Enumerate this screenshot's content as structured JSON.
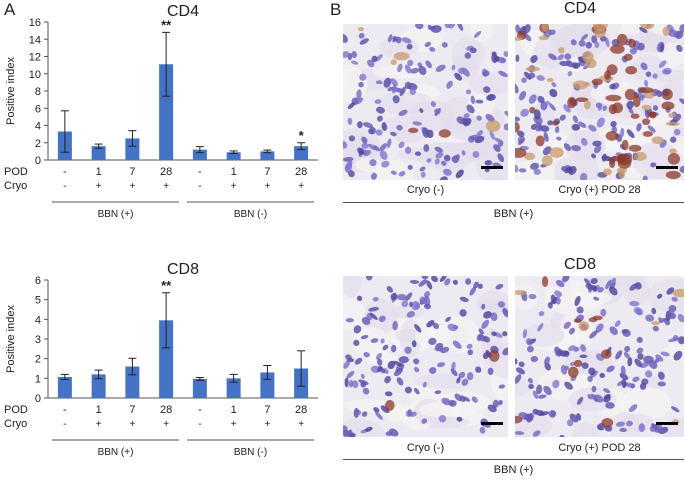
{
  "panel_a_label": "A",
  "panel_b_label": "B",
  "chart_data": [
    {
      "type": "bar",
      "title": "CD4",
      "ylabel": "Positive index",
      "ylim": [
        0,
        16
      ],
      "yticks": [
        0,
        2,
        4,
        6,
        8,
        10,
        12,
        14,
        16
      ],
      "bar_color": "#4472C4",
      "rows": [
        {
          "label": "POD",
          "values": [
            "-",
            "1",
            "7",
            "28",
            "-",
            "1",
            "7",
            "28"
          ]
        },
        {
          "label": "Cryo",
          "values": [
            "-",
            "+",
            "+",
            "+",
            "-",
            "+",
            "+",
            "+"
          ]
        }
      ],
      "groups": [
        {
          "label": "BBN (+)",
          "bars": [
            0,
            1,
            2,
            3
          ]
        },
        {
          "label": "BBN (-)",
          "bars": [
            4,
            5,
            6,
            7
          ]
        }
      ],
      "values": [
        3.3,
        1.6,
        2.5,
        11.1,
        1.2,
        0.9,
        1.0,
        1.6
      ],
      "errors": [
        2.4,
        0.25,
        0.9,
        3.7,
        0.35,
        0.15,
        0.15,
        0.4
      ],
      "annotations": [
        {
          "bar": 3,
          "text": "**"
        },
        {
          "bar": 7,
          "text": "*"
        }
      ]
    },
    {
      "type": "bar",
      "title": "CD8",
      "ylabel": "Positive index",
      "ylim": [
        0,
        6
      ],
      "yticks": [
        0,
        1,
        2,
        3,
        4,
        5,
        6
      ],
      "bar_color": "#4472C4",
      "rows": [
        {
          "label": "POD",
          "values": [
            "-",
            "1",
            "7",
            "28",
            "-",
            "1",
            "7",
            "28"
          ]
        },
        {
          "label": "Cryo",
          "values": [
            "-",
            "+",
            "+",
            "+",
            "-",
            "+",
            "+",
            "+"
          ]
        }
      ],
      "groups": [
        {
          "label": "BBN (+)",
          "bars": [
            0,
            1,
            2,
            3
          ]
        },
        {
          "label": "BBN (-)",
          "bars": [
            4,
            5,
            6,
            7
          ]
        }
      ],
      "values": [
        1.07,
        1.2,
        1.6,
        3.95,
        0.97,
        1.0,
        1.3,
        1.5
      ],
      "errors": [
        0.13,
        0.22,
        0.42,
        1.4,
        0.07,
        0.2,
        0.35,
        0.9
      ],
      "annotations": [
        {
          "bar": 3,
          "text": "**"
        }
      ]
    }
  ],
  "images": {
    "cd4": {
      "title": "CD4",
      "left_caption": "Cryo (-)",
      "right_caption": "Cryo (+)  POD 28",
      "group_caption": "BBN (+)"
    },
    "cd8": {
      "title": "CD8",
      "left_caption": "Cryo (-)",
      "right_caption": "Cryo (+)  POD 28",
      "group_caption": "BBN (+)"
    }
  },
  "colors": {
    "bar": "#4472C4",
    "nuclei": "#5a4fa0",
    "stain": "#8b3a2a",
    "tissue_bg": "#eeeaf2"
  }
}
